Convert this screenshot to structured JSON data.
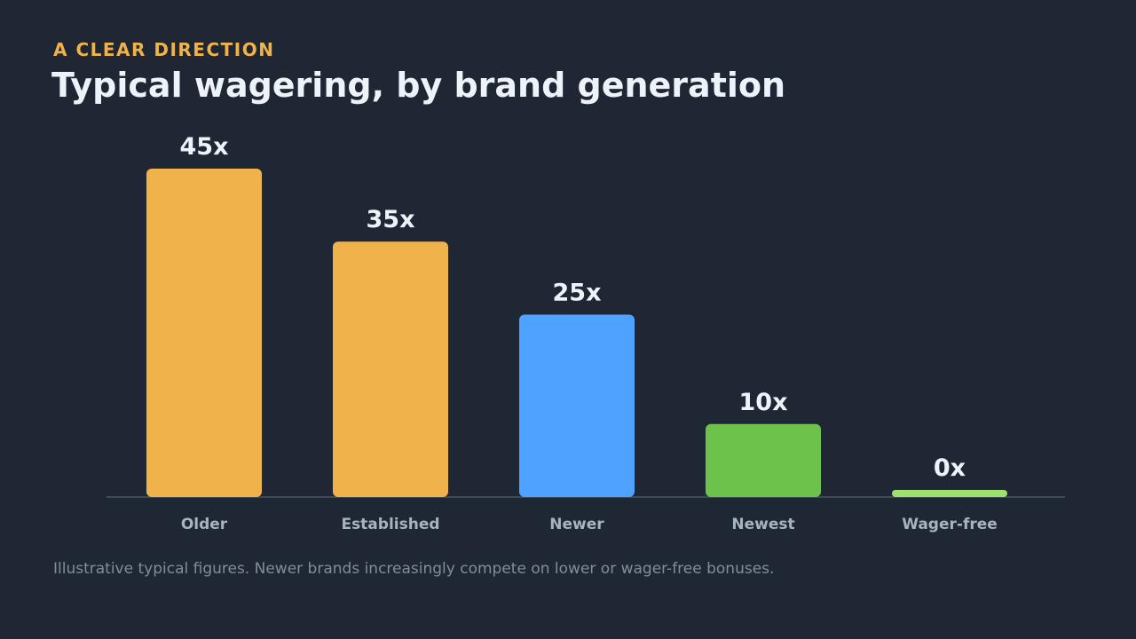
{
  "header": {
    "eyebrow": "A CLEAR DIRECTION",
    "title": "Typical wagering, by brand generation"
  },
  "footer": {
    "note": "Illustrative typical figures. Newer brands increasingly compete on lower or wager-free bonuses."
  },
  "colors": {
    "background": "#1e2733",
    "amber": "#f0b24a",
    "blue": "#4da3ff",
    "green": "#6cc24a",
    "light_green": "#9ee06e",
    "value_text": "#eef3fa",
    "category_text": "#a9b3bf",
    "baseline": "#4a5563"
  },
  "chart_data": {
    "type": "bar",
    "categories": [
      "Older",
      "Established",
      "Newer",
      "Newest",
      "Wager-free"
    ],
    "values": [
      45,
      35,
      25,
      10,
      0
    ],
    "data_labels": [
      "45x",
      "35x",
      "25x",
      "10x",
      "0x"
    ],
    "bar_colors": [
      "#f0b24a",
      "#f0b24a",
      "#4da3ff",
      "#6cc24a",
      "#9ee06e"
    ],
    "title": "Typical wagering, by brand generation",
    "xlabel": "",
    "ylabel": "",
    "ylim": [
      0,
      45
    ],
    "grid": false,
    "legend": "none"
  }
}
